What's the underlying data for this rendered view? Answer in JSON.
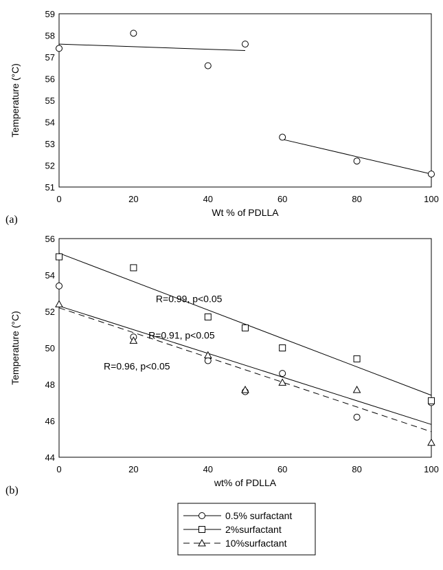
{
  "chart_data": [
    {
      "type": "scatter",
      "panel_label": "(a)",
      "xlabel": "Wt % of PDLLA",
      "ylabel": "Temperature (°C)",
      "xlim": [
        0,
        100
      ],
      "ylim": [
        51,
        59
      ],
      "xticks": [
        0,
        20,
        40,
        60,
        80,
        100
      ],
      "yticks": [
        51,
        52,
        53,
        54,
        55,
        56,
        57,
        58,
        59
      ],
      "grid": false,
      "series": [
        {
          "marker": "circle",
          "x": [
            0,
            20,
            40,
            50,
            60,
            80,
            100
          ],
          "y": [
            57.4,
            58.1,
            56.6,
            57.6,
            53.3,
            52.2,
            51.6
          ]
        }
      ],
      "fits": [
        {
          "x": [
            0,
            50
          ],
          "y": [
            57.6,
            57.3
          ],
          "style": "solid"
        },
        {
          "x": [
            60,
            100
          ],
          "y": [
            53.2,
            51.6
          ],
          "style": "solid"
        }
      ]
    },
    {
      "type": "scatter",
      "panel_label": "(b)",
      "xlabel": "wt% of PDLLA",
      "ylabel": "Temperature (°C)",
      "xlim": [
        0,
        100
      ],
      "ylim": [
        44,
        56
      ],
      "xticks": [
        0,
        20,
        40,
        60,
        80,
        100
      ],
      "yticks": [
        44,
        46,
        48,
        50,
        52,
        54,
        56
      ],
      "grid": false,
      "series": [
        {
          "name": "0.5% surfactant",
          "marker": "circle",
          "line": "solid",
          "x": [
            0,
            20,
            40,
            50,
            60,
            80,
            100
          ],
          "y": [
            53.4,
            50.6,
            49.3,
            47.6,
            48.6,
            46.2,
            47.0
          ],
          "fit": {
            "x": [
              0,
              100
            ],
            "y": [
              52.3,
              45.8
            ]
          }
        },
        {
          "name": "2%surfactant",
          "marker": "square",
          "line": "solid",
          "x": [
            0,
            20,
            40,
            50,
            60,
            80,
            100
          ],
          "y": [
            55.0,
            54.4,
            51.7,
            51.1,
            50.0,
            49.4,
            47.1
          ],
          "fit": {
            "x": [
              0,
              100
            ],
            "y": [
              55.2,
              47.4
            ]
          }
        },
        {
          "name": "10%surfactant",
          "marker": "triangle",
          "line": "dashed",
          "x": [
            0,
            20,
            40,
            50,
            60,
            80,
            100
          ],
          "y": [
            52.4,
            50.4,
            49.6,
            47.7,
            48.1,
            47.7,
            44.8
          ],
          "fit": {
            "x": [
              0,
              100
            ],
            "y": [
              52.2,
              45.4
            ]
          }
        }
      ],
      "annotations": [
        {
          "text": "R=0.99, p<0.05",
          "x": 26,
          "y": 52.7
        },
        {
          "text": "R=0.91, p<0.05",
          "x": 24,
          "y": 50.7
        },
        {
          "text": "R=0.96, p<0.05",
          "x": 12,
          "y": 49.0
        }
      ]
    }
  ],
  "legend": {
    "items": [
      {
        "label": "0.5% surfactant",
        "marker": "circle",
        "line": "solid"
      },
      {
        "label": "2%surfactant",
        "marker": "square",
        "line": "solid"
      },
      {
        "label": "10%surfactant",
        "marker": "triangle",
        "line": "dashed"
      }
    ]
  }
}
